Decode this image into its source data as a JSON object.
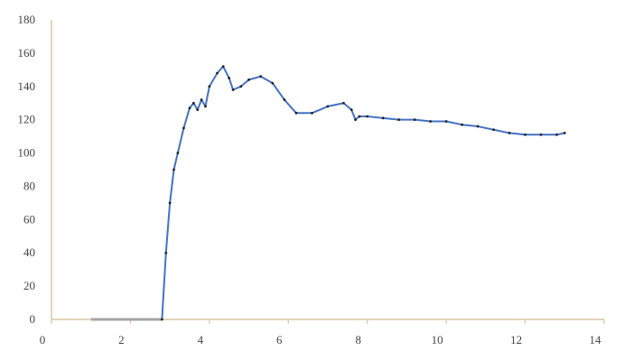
{
  "chart_data": {
    "type": "line",
    "title": "",
    "xlabel": "",
    "ylabel": "",
    "xlim": [
      0,
      14
    ],
    "ylim": [
      0,
      180
    ],
    "x_ticks": [
      0,
      2,
      4,
      6,
      8,
      10,
      12,
      14
    ],
    "x_tick_labels": [
      "0",
      "2",
      "4",
      "6",
      "8",
      "10",
      "12",
      "14"
    ],
    "y_ticks": [
      0,
      20,
      40,
      60,
      80,
      100,
      120,
      140,
      160,
      180
    ],
    "y_tick_labels": [
      "0",
      "20",
      "40",
      "60",
      "80",
      "100",
      "120",
      "140",
      "160",
      "180"
    ],
    "grid": false,
    "legend": "none",
    "colors": {
      "line": "#4472c4",
      "flat_segment": "#a5a5a5",
      "axis": "#d9c7a7",
      "markers": "#222222"
    },
    "series": [
      {
        "x": [
          1.0,
          1.5,
          2.0,
          2.5,
          2.8,
          2.9,
          3.0,
          3.1,
          3.2,
          3.35,
          3.5,
          3.6,
          3.7,
          3.8,
          3.9,
          4.0,
          4.2,
          4.35,
          4.5,
          4.6,
          4.8,
          5.0,
          5.3,
          5.6,
          5.9,
          6.2,
          6.6,
          7.0,
          7.4,
          7.6,
          7.7,
          7.8,
          8.0,
          8.4,
          8.8,
          9.2,
          9.6,
          10.0,
          10.4,
          10.8,
          11.2,
          11.6,
          12.0,
          12.4,
          12.8,
          13.0
        ],
        "y": [
          0,
          0,
          0,
          0,
          0,
          40,
          70,
          90,
          100,
          115,
          127,
          130,
          126,
          132,
          128,
          140,
          148,
          152,
          145,
          138,
          140,
          144,
          146,
          142,
          132,
          124,
          124,
          128,
          130,
          126,
          120,
          122,
          122,
          121,
          120,
          120,
          119,
          119,
          117,
          116,
          114,
          112,
          111,
          111,
          111,
          112
        ]
      }
    ]
  }
}
